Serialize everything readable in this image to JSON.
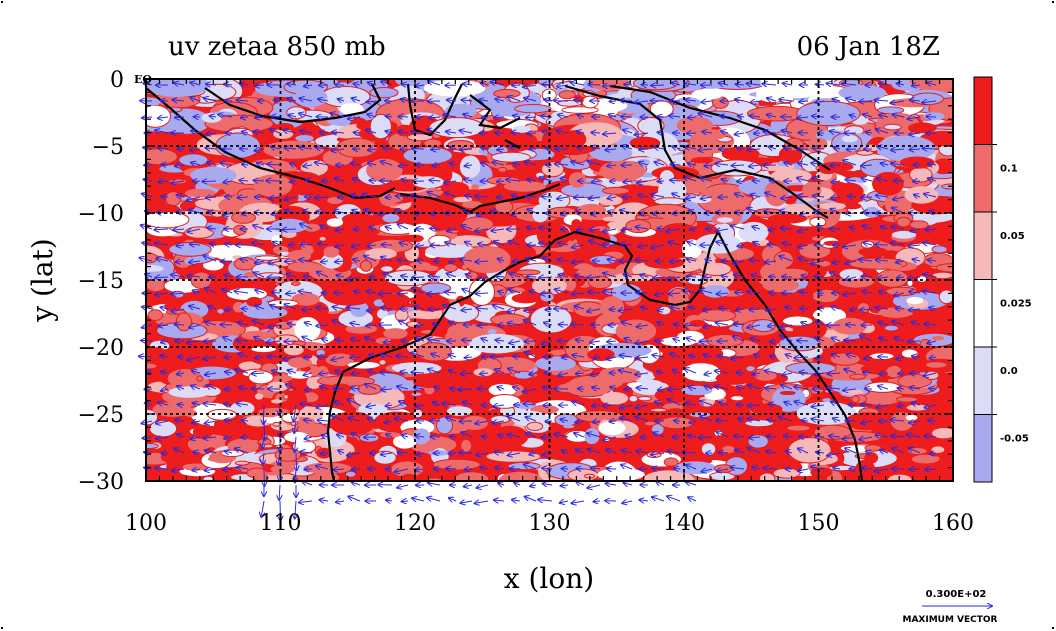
{
  "chart_data": {
    "type": "heatmap",
    "title_left": "uv zetaa 850 mb",
    "title_right": "06 Jan 18Z",
    "xlabel": "x (lon)",
    "ylabel": "y (lat)",
    "xlim": [
      100,
      160
    ],
    "ylim": [
      -30,
      0
    ],
    "x_ticks": [
      100,
      110,
      120,
      130,
      140,
      150,
      160
    ],
    "y_ticks": [
      0,
      -5,
      -10,
      -15,
      -20,
      -25,
      -30
    ],
    "y_tick_labels": [
      "0",
      "−5",
      "−10",
      "−15",
      "−20",
      "−25",
      "−30"
    ],
    "equator_label": "EQ",
    "grid": true,
    "colorbar": {
      "levels": [
        {
          "label": "",
          "color": "#ee1c1c"
        },
        {
          "label": "0.1",
          "color": "#ee6b6b"
        },
        {
          "label": "0.05",
          "color": "#f5b9b9"
        },
        {
          "label": "0.025",
          "color": "#ffffff"
        },
        {
          "label": "0.0",
          "color": "#dcdcf6"
        },
        {
          "label": "-0.05",
          "color": "#a9a9ef"
        }
      ]
    },
    "vector_reference": {
      "value": "0.300E+02",
      "caption": "MAXIMUM VECTOR"
    }
  }
}
